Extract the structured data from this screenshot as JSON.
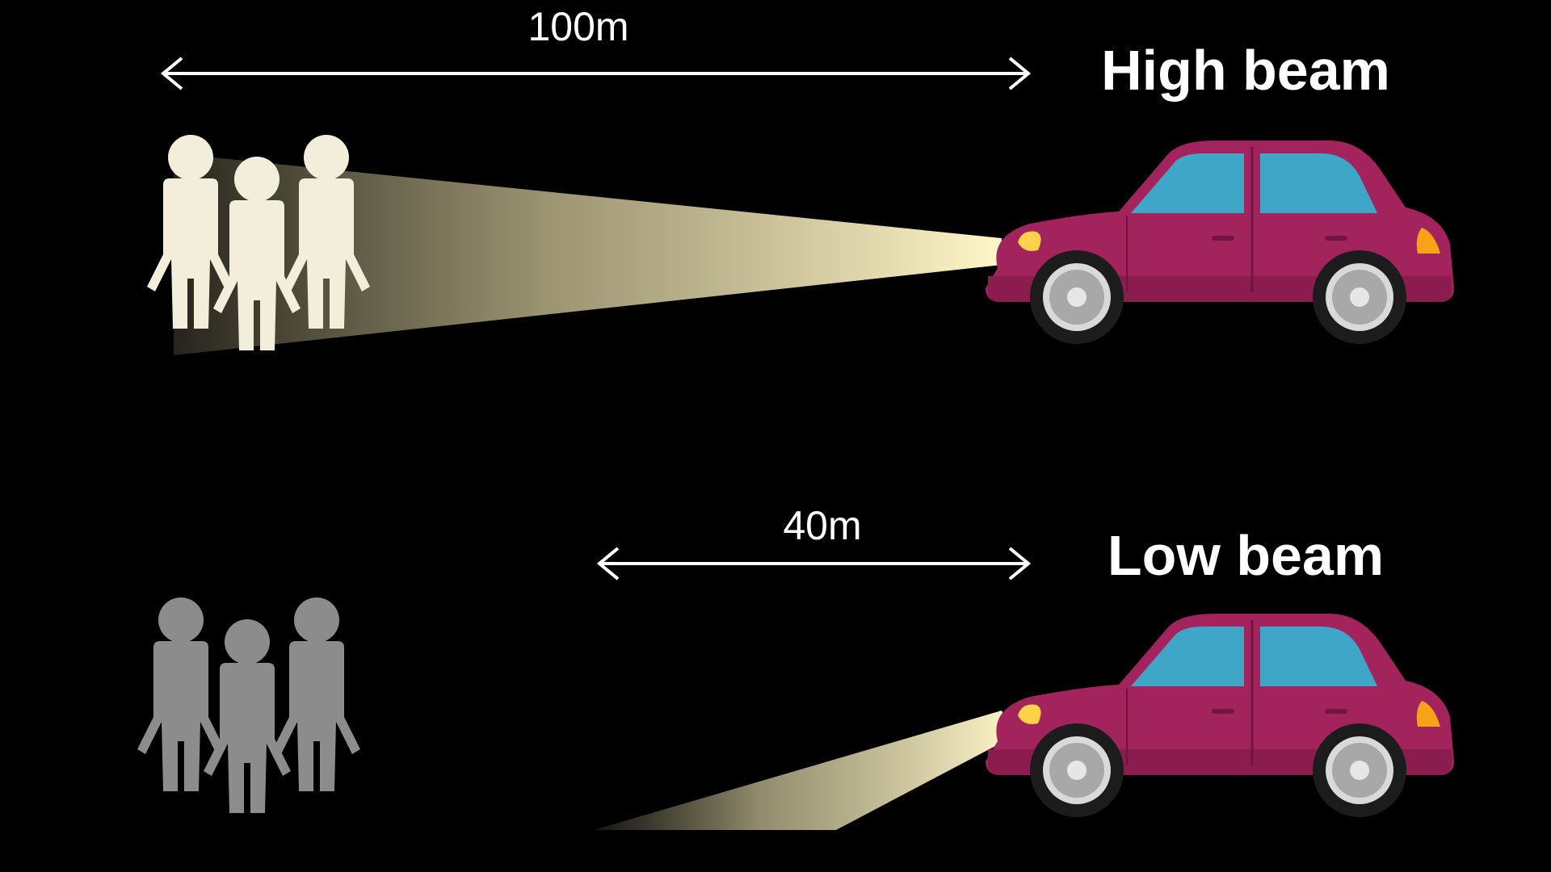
{
  "high_beam": {
    "title": "High beam",
    "distance_label": "100m",
    "pedestrians_color": "#F3EEDB",
    "beam_color": "#FFF8D6"
  },
  "low_beam": {
    "title": "Low beam",
    "distance_label": "40m",
    "pedestrians_color": "#8C8C8C",
    "beam_color": "#FFF8D6"
  },
  "car": {
    "body_color": "#A3245D",
    "body_shade": "#8A1C4E",
    "window_color": "#3FA6C8",
    "headlight_color": "#FFD24A",
    "taillight_color": "#F7A21B"
  },
  "arrow_color": "#FFFFFF",
  "background": "#000000"
}
